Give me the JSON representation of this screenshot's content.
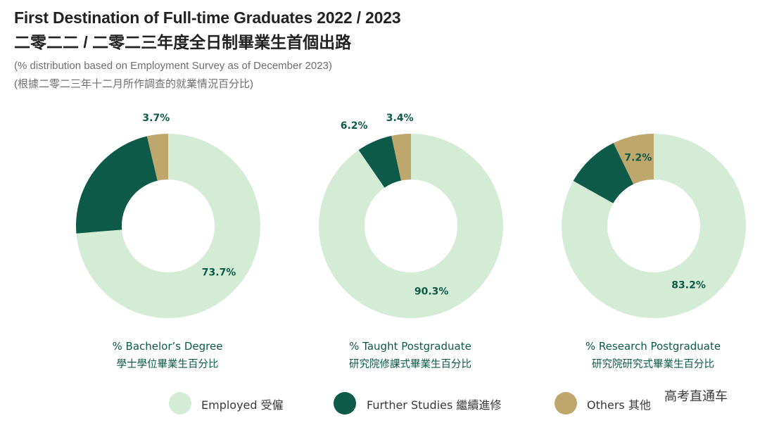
{
  "header": {
    "title_en": "First Destination of Full-time Graduates 2022 / 2023",
    "title_zh": "二零二二 / 二零二三年度全日制畢業生首個出路",
    "subtitle_en": "(% distribution based on Employment Survey as of December 2023)",
    "subtitle_zh": "(根據二零二三年十二月所作調查的就業情況百分比)"
  },
  "colors": {
    "employed": "#d4ecd6",
    "further_studies": "#0c5a47",
    "others": "#bea76d",
    "label": "#0c5a47"
  },
  "chart_data": [
    {
      "type": "pie",
      "title": "% Bachelor’s Degree",
      "title_zh": "學士學位畢業生百分比",
      "categories": [
        "Employed 受僱",
        "Further Studies 繼續進修",
        "Others 其他"
      ],
      "values": [
        73.7,
        22.6,
        3.7
      ],
      "labels": [
        "73.7%",
        "22.6%",
        "3.7%"
      ]
    },
    {
      "type": "pie",
      "title": "% Taught Postgraduate",
      "title_zh": "研究院修課式畢業生百分比",
      "categories": [
        "Employed 受僱",
        "Further Studies 繼續進修",
        "Others 其他"
      ],
      "values": [
        90.3,
        6.2,
        3.4
      ],
      "labels": [
        "90.3%",
        "6.2%",
        "3.4%"
      ]
    },
    {
      "type": "pie",
      "title": "% Research Postgraduate",
      "title_zh": "研究院研究式畢業生百分比",
      "categories": [
        "Employed 受僱",
        "Further Studies 繼續進修",
        "Others 其他"
      ],
      "values": [
        83.2,
        9.7,
        7.2
      ],
      "labels": [
        "83.2%",
        "9.7%",
        "7.2%"
      ]
    }
  ],
  "legend": [
    {
      "label": "Employed 受僱"
    },
    {
      "label": "Further Studies 繼續進修"
    },
    {
      "label": "Others 其他"
    }
  ],
  "watermark": "高考直通车"
}
